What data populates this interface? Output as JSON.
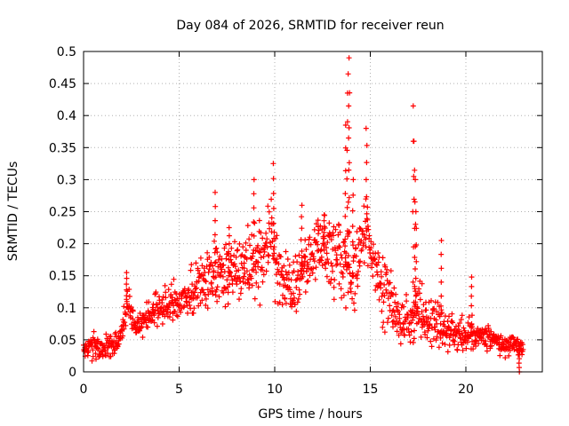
{
  "chart_data": {
    "type": "scatter",
    "title": "Day 084 of 2026, SRMTID for receiver reun",
    "xlabel": "GPS time / hours",
    "ylabel": "SRMTID / TECUs",
    "xlim": [
      0,
      24
    ],
    "ylim": [
      0,
      0.5
    ],
    "xticks": [
      0,
      5,
      10,
      15,
      20
    ],
    "xtick_labels": [
      "0",
      "5",
      "10",
      "15",
      "20"
    ],
    "yticks": [
      0,
      0.05,
      0.1,
      0.15,
      0.2,
      0.25,
      0.3,
      0.35,
      0.4,
      0.45,
      0.5
    ],
    "ytick_labels": [
      "0",
      "0.05",
      "0.1",
      "0.15",
      "0.2",
      "0.25",
      "0.3",
      "0.35",
      "0.4",
      "0.45",
      "0.5"
    ],
    "grid": true,
    "marker": "+",
    "series_color": "#ff0000",
    "series": [
      {
        "name": "SRMTID",
        "envelope": [
          {
            "x": 0.0,
            "y": 0.035,
            "spread": 0.012
          },
          {
            "x": 0.5,
            "y": 0.04,
            "spread": 0.02
          },
          {
            "x": 1.0,
            "y": 0.035,
            "spread": 0.018
          },
          {
            "x": 1.5,
            "y": 0.04,
            "spread": 0.02
          },
          {
            "x": 2.0,
            "y": 0.055,
            "spread": 0.02
          },
          {
            "x": 2.3,
            "y": 0.11,
            "spread": 0.03
          },
          {
            "x": 2.7,
            "y": 0.07,
            "spread": 0.02
          },
          {
            "x": 3.2,
            "y": 0.085,
            "spread": 0.025
          },
          {
            "x": 4.0,
            "y": 0.1,
            "spread": 0.03
          },
          {
            "x": 5.0,
            "y": 0.11,
            "spread": 0.035
          },
          {
            "x": 6.0,
            "y": 0.13,
            "spread": 0.04
          },
          {
            "x": 7.0,
            "y": 0.15,
            "spread": 0.05
          },
          {
            "x": 8.0,
            "y": 0.15,
            "spread": 0.05
          },
          {
            "x": 9.0,
            "y": 0.17,
            "spread": 0.06
          },
          {
            "x": 9.8,
            "y": 0.2,
            "spread": 0.07
          },
          {
            "x": 10.5,
            "y": 0.13,
            "spread": 0.05
          },
          {
            "x": 11.2,
            "y": 0.14,
            "spread": 0.05
          },
          {
            "x": 12.0,
            "y": 0.19,
            "spread": 0.06
          },
          {
            "x": 12.8,
            "y": 0.19,
            "spread": 0.06
          },
          {
            "x": 13.5,
            "y": 0.18,
            "spread": 0.06
          },
          {
            "x": 14.2,
            "y": 0.15,
            "spread": 0.06
          },
          {
            "x": 14.8,
            "y": 0.22,
            "spread": 0.05
          },
          {
            "x": 15.5,
            "y": 0.13,
            "spread": 0.05
          },
          {
            "x": 16.3,
            "y": 0.1,
            "spread": 0.04
          },
          {
            "x": 17.0,
            "y": 0.07,
            "spread": 0.04
          },
          {
            "x": 17.5,
            "y": 0.1,
            "spread": 0.05
          },
          {
            "x": 18.0,
            "y": 0.08,
            "spread": 0.04
          },
          {
            "x": 18.6,
            "y": 0.08,
            "spread": 0.04
          },
          {
            "x": 19.0,
            "y": 0.06,
            "spread": 0.03
          },
          {
            "x": 20.0,
            "y": 0.06,
            "spread": 0.03
          },
          {
            "x": 21.0,
            "y": 0.055,
            "spread": 0.02
          },
          {
            "x": 22.0,
            "y": 0.045,
            "spread": 0.02
          },
          {
            "x": 23.0,
            "y": 0.04,
            "spread": 0.015
          }
        ],
        "n_points": 1300,
        "peaks": [
          {
            "x": 2.25,
            "y": 0.155
          },
          {
            "x": 6.9,
            "y": 0.28
          },
          {
            "x": 7.6,
            "y": 0.225
          },
          {
            "x": 8.9,
            "y": 0.3
          },
          {
            "x": 9.95,
            "y": 0.325
          },
          {
            "x": 11.4,
            "y": 0.26
          },
          {
            "x": 12.6,
            "y": 0.245
          },
          {
            "x": 13.7,
            "y": 0.385
          },
          {
            "x": 13.8,
            "y": 0.435
          },
          {
            "x": 13.85,
            "y": 0.465
          },
          {
            "x": 13.9,
            "y": 0.49
          },
          {
            "x": 14.1,
            "y": 0.3
          },
          {
            "x": 14.8,
            "y": 0.38
          },
          {
            "x": 17.25,
            "y": 0.415
          },
          {
            "x": 17.3,
            "y": 0.36
          },
          {
            "x": 17.35,
            "y": 0.3
          },
          {
            "x": 17.4,
            "y": 0.25
          },
          {
            "x": 18.7,
            "y": 0.205
          },
          {
            "x": 20.3,
            "y": 0.148
          },
          {
            "x": 22.8,
            "y": 0.0
          }
        ]
      }
    ]
  }
}
